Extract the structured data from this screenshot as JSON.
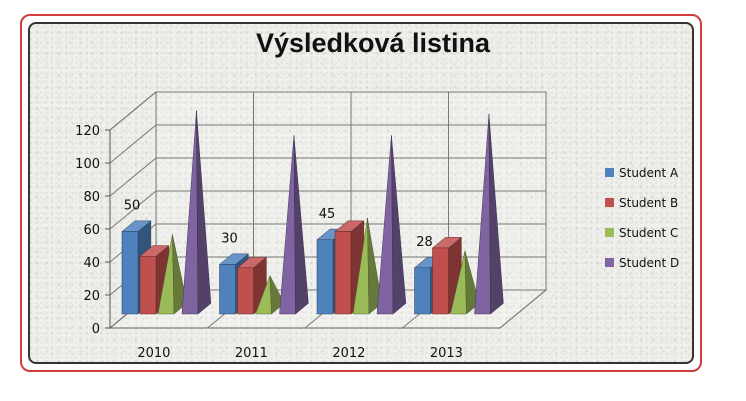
{
  "chart_data": {
    "type": "bar",
    "title": "Výsledková listina",
    "categories": [
      "2010",
      "2011",
      "2012",
      "2013"
    ],
    "series": [
      {
        "name": "Student A",
        "values": [
          50,
          30,
          45,
          28
        ],
        "shape": "box",
        "color": "#4f81bd"
      },
      {
        "name": "Student B",
        "values": [
          35,
          28,
          50,
          40
        ],
        "shape": "box",
        "color": "#c0504d"
      },
      {
        "name": "Student C",
        "values": [
          45,
          20,
          55,
          35
        ],
        "shape": "pyramid",
        "color": "#9bbb59"
      },
      {
        "name": "Student D",
        "values": [
          120,
          105,
          105,
          118
        ],
        "shape": "pyramid",
        "color": "#8064a2"
      }
    ],
    "data_labels": {
      "series": "Student A",
      "show": true
    },
    "ylim": [
      0,
      120
    ],
    "yticks": [
      0,
      20,
      40,
      60,
      80,
      100,
      120
    ],
    "grid": true,
    "legend": "right"
  }
}
